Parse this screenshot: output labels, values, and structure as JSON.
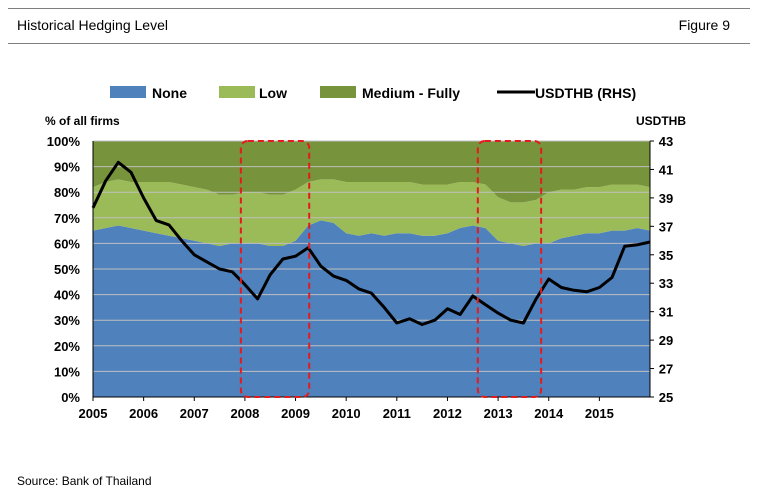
{
  "header": {
    "title": "Historical Hedging Level",
    "figure": "Figure 9"
  },
  "source": "Source: Bank of Thailand",
  "colors": {
    "none": "#4f81bd",
    "low": "#9bbb59",
    "medium": "#77933c",
    "usd": "#000000",
    "highlight": "#e41a1c",
    "grid": "#bfbfbf"
  },
  "chart_data": {
    "type": "area",
    "stacking": "percent",
    "ylabel": "% of all firms",
    "y2label": "USDTHB",
    "ylim": [
      0,
      100
    ],
    "y2lim": [
      25,
      43
    ],
    "yticks": [
      "0%",
      "10%",
      "20%",
      "30%",
      "40%",
      "50%",
      "60%",
      "70%",
      "80%",
      "90%",
      "100%"
    ],
    "y2ticks": [
      "25",
      "27",
      "29",
      "31",
      "33",
      "35",
      "37",
      "39",
      "41",
      "43"
    ],
    "xticks": [
      "2005",
      "2006",
      "2007",
      "2008",
      "2009",
      "2010",
      "2011",
      "2012",
      "2013",
      "2014",
      "2015"
    ],
    "legend": {
      "position": "top",
      "entries": [
        "None",
        "Low",
        "Medium - Fully",
        "USDTHB (RHS)"
      ]
    },
    "x": [
      2005.0,
      2005.25,
      2005.5,
      2005.75,
      2006.0,
      2006.25,
      2006.5,
      2006.75,
      2007.0,
      2007.25,
      2007.5,
      2007.75,
      2008.0,
      2008.25,
      2008.5,
      2008.75,
      2009.0,
      2009.25,
      2009.5,
      2009.75,
      2010.0,
      2010.25,
      2010.5,
      2010.75,
      2011.0,
      2011.25,
      2011.5,
      2011.75,
      2012.0,
      2012.25,
      2012.5,
      2012.75,
      2013.0,
      2013.25,
      2013.5,
      2013.75,
      2014.0,
      2014.25,
      2014.5,
      2014.75,
      2015.0,
      2015.25,
      2015.5,
      2015.75,
      2015.95
    ],
    "series": [
      {
        "name": "None",
        "axis": "left",
        "values": [
          65,
          66,
          67,
          66,
          65,
          64,
          63,
          62,
          61,
          60,
          59,
          60,
          60,
          60,
          59,
          59,
          61,
          67,
          69,
          68,
          64,
          63,
          64,
          63,
          64,
          64,
          63,
          63,
          64,
          66,
          67,
          66,
          61,
          60,
          59,
          60,
          60,
          62,
          63,
          64,
          64,
          65,
          65,
          66,
          65
        ]
      },
      {
        "name": "Low",
        "axis": "left",
        "values": [
          17,
          18,
          18,
          18,
          19,
          20,
          21,
          21,
          21,
          21,
          20,
          19,
          20,
          20,
          20,
          20,
          20,
          17,
          16,
          17,
          20,
          21,
          20,
          21,
          20,
          20,
          20,
          20,
          19,
          18,
          17,
          17,
          17,
          16,
          17,
          17,
          20,
          19,
          18,
          18,
          18,
          18,
          18,
          17,
          17
        ]
      },
      {
        "name": "Medium - Fully",
        "axis": "left",
        "values": [
          18,
          16,
          15,
          16,
          16,
          16,
          16,
          17,
          18,
          19,
          21,
          21,
          20,
          20,
          21,
          21,
          19,
          16,
          15,
          15,
          16,
          16,
          16,
          16,
          16,
          16,
          17,
          17,
          17,
          16,
          16,
          17,
          22,
          24,
          24,
          23,
          20,
          19,
          19,
          18,
          18,
          17,
          17,
          17,
          18
        ]
      },
      {
        "name": "USDTHB (RHS)",
        "axis": "right",
        "values": [
          38.3,
          40.2,
          41.5,
          40.8,
          39.0,
          37.4,
          37.1,
          36.0,
          35.0,
          34.5,
          34.0,
          33.8,
          32.9,
          31.9,
          33.6,
          34.7,
          34.9,
          35.5,
          34.2,
          33.5,
          33.2,
          32.6,
          32.3,
          31.3,
          30.2,
          30.5,
          30.1,
          30.4,
          31.2,
          30.8,
          32.1,
          31.5,
          30.9,
          30.4,
          30.2,
          31.9,
          33.3,
          32.7,
          32.5,
          32.4,
          32.7,
          33.4,
          35.6,
          35.7,
          35.9
        ]
      }
    ],
    "highlights": [
      {
        "from": 2007.92,
        "to": 2009.27
      },
      {
        "from": 2012.6,
        "to": 2013.85
      }
    ]
  }
}
